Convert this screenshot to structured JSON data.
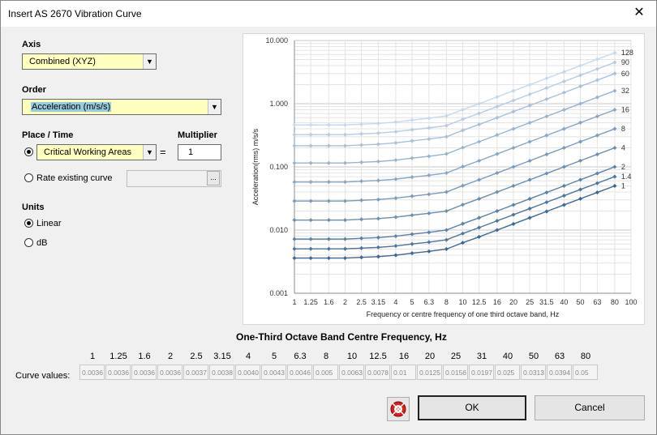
{
  "window": {
    "title": "Insert AS 2670 Vibration Curve",
    "close_glyph": "✕"
  },
  "axis": {
    "label": "Axis",
    "value": "Combined (XYZ)"
  },
  "order": {
    "label": "Order",
    "value": "Acceleration (m/s/s)"
  },
  "place_time": {
    "label": "Place / Time",
    "value": "Critical Working Areas",
    "equals": "="
  },
  "multiplier": {
    "label": "Multiplier",
    "value": "1"
  },
  "rate_existing": {
    "label": "Rate existing curve",
    "button": "..."
  },
  "units": {
    "label": "Units",
    "options": [
      "Linear",
      "dB"
    ],
    "selected": "Linear"
  },
  "colors": {
    "curve_dark": "#3d6895",
    "curve_light": "#c6d9ec",
    "highlight": "#ffffc0"
  },
  "chart_data": {
    "type": "line",
    "log_scale": {
      "x": true,
      "y": true
    },
    "xlabel": "Frequency or centre frequency of one third octave band, Hz",
    "ylabel": "Acceleration(rms) m/s/s",
    "xlim": [
      1,
      100
    ],
    "ylim": [
      0.001,
      10
    ],
    "x_ticks": [
      "1",
      "1.25",
      "1.6",
      "2",
      "2.5",
      "3.15",
      "4",
      "5",
      "6.3",
      "8",
      "10",
      "12.5",
      "16",
      "20",
      "25",
      "31.5",
      "40",
      "50",
      "63",
      "80",
      "100"
    ],
    "y_ticks": [
      "0.001",
      "0.010",
      "0.100",
      "1.000",
      "10.000"
    ],
    "grid": true,
    "legend": "none",
    "x": [
      1,
      1.25,
      1.6,
      2,
      2.5,
      3.15,
      4,
      5,
      6.3,
      8,
      10,
      12.5,
      16,
      20,
      25,
      31.5,
      40,
      50,
      63,
      80
    ],
    "base": [
      0.0036,
      0.0036,
      0.0036,
      0.0036,
      0.0037,
      0.0038,
      0.004,
      0.0043,
      0.0046,
      0.005,
      0.0063,
      0.0078,
      0.01,
      0.0125,
      0.0156,
      0.0197,
      0.025,
      0.0313,
      0.0394,
      0.05
    ],
    "series": [
      {
        "name": "1",
        "multiplier": 1
      },
      {
        "name": "1.4",
        "multiplier": 1.4
      },
      {
        "name": "2",
        "multiplier": 2
      },
      {
        "name": "4",
        "multiplier": 4
      },
      {
        "name": "8",
        "multiplier": 8
      },
      {
        "name": "16",
        "multiplier": 16
      },
      {
        "name": "32",
        "multiplier": 32
      },
      {
        "name": "60",
        "multiplier": 60
      },
      {
        "name": "90",
        "multiplier": 90
      },
      {
        "name": "128",
        "multiplier": 128
      }
    ]
  },
  "band_section": {
    "title": "One-Third Octave Band Centre Frequency, Hz",
    "row_label": "Curve values:",
    "bands": [
      "1",
      "1.25",
      "1.6",
      "2",
      "2.5",
      "3.15",
      "4",
      "5",
      "6.3",
      "8",
      "10",
      "12.5",
      "16",
      "20",
      "25",
      "31",
      "40",
      "50",
      "63",
      "80"
    ],
    "values": [
      "0.0036",
      "0.0036",
      "0.0036",
      "0.0036",
      "0.0037",
      "0.0038",
      "0.0040",
      "0.0043",
      "0.0046",
      "0.005",
      "0.0063",
      "0.0078",
      "0.01",
      "0.0125",
      "0.0156",
      "0.0197",
      "0.025",
      "0.0313",
      "0.0394",
      "0.05"
    ]
  },
  "buttons": {
    "ok": "OK",
    "cancel": "Cancel",
    "help_icon": "help-icon"
  }
}
